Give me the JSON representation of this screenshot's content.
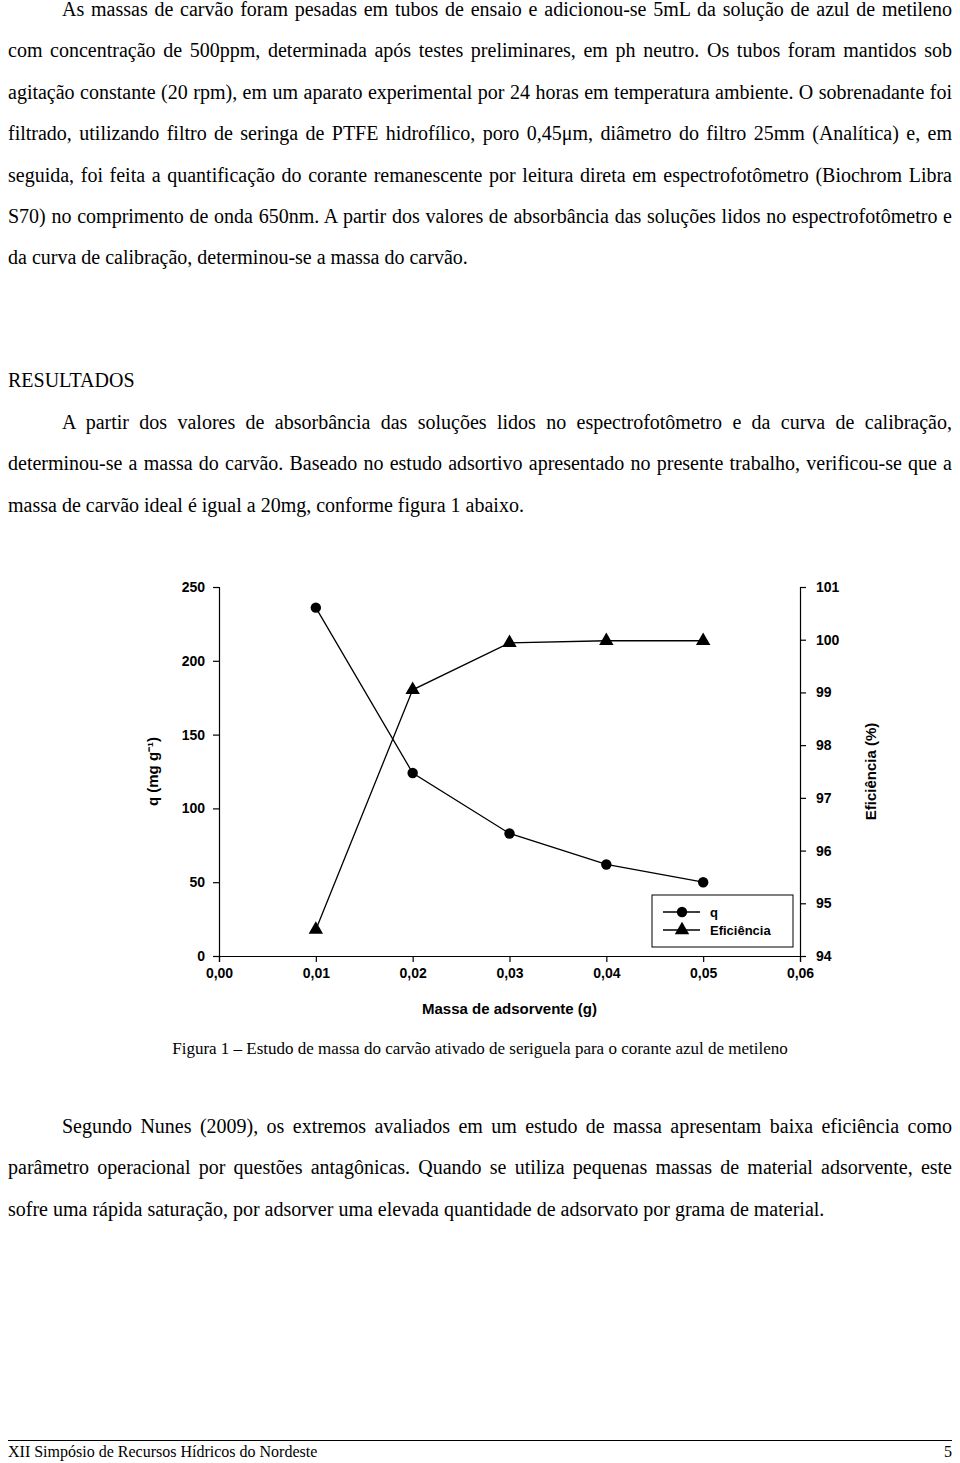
{
  "paragraphs": [
    "As massas de carvão foram  pesadas em tubos de ensaio e adicionou-se 5mL da solução de azul de metileno com concentração de 500ppm, determinada após testes preliminares, em ph neutro. Os tubos foram  mantidos sob agitação constante (20 rpm), em um aparato experimental por 24 horas em temperatura ambiente. O sobrenadante foi filtrado, utilizando filtro de seringa de PTFE hidrofílico, poro 0,45μm, diâmetro do filtro 25mm (Analítica) e, em seguida, foi feita a quantificação do corante remanescente por leitura direta em espectrofotômetro (Biochrom Libra S70) no comprimento de onda 650nm. A partir dos valores de absorbância das soluções lidos no espectrofotômetro e da curva de calibração, determinou-se a massa do carvão.",
    "A partir dos valores de absorbância das soluções lidos no espectrofotômetro e da curva de calibração, determinou-se a massa do carvão. Baseado no estudo adsortivo apresentado no presente trabalho, verificou-se que a massa de carvão ideal é igual a 20mg, conforme figura 1 abaixo.",
    "Segundo Nunes (2009), os extremos avaliados em um estudo de massa apresentam baixa eficiência como parâmetro operacional por questões antagônicas. Quando se utiliza pequenas massas de material adsorvente, este sofre uma rápida saturação, por adsorver uma elevada quantidade de adsorvato por grama de material."
  ],
  "heading": "RESULTADOS",
  "caption": "Figura 1 – Estudo de massa do carvão ativado de seriguela para o corante azul de metileno",
  "footer": {
    "left": "XII Simpósio de Recursos Hídricos do Nordeste",
    "page": "5"
  },
  "chart_data": {
    "type": "line",
    "x_label": "Massa de adsorvente (g)",
    "y_label": "q (mg g⁻¹)",
    "y2_label": "Eficiência (%)",
    "x": [
      0.01,
      0.02,
      0.03,
      0.04,
      0.05
    ],
    "series": [
      {
        "name": "q",
        "color": "#000000",
        "marker": "circle",
        "line_style": "solid",
        "values": [
          236,
          124,
          83,
          62,
          50
        ]
      },
      {
        "name": "Eficiência",
        "color": "#000000",
        "marker": "triangle",
        "line_style": "solid",
        "axis": "y2",
        "values": [
          94.5,
          99.05,
          99.94,
          99.98,
          99.98
        ]
      }
    ],
    "xlim": [
      0,
      0.06
    ],
    "xticks": [
      {
        "value": 0,
        "label": "0,00"
      },
      {
        "value": 0.01,
        "label": "0,01"
      },
      {
        "value": 0.02,
        "label": "0,02"
      },
      {
        "value": 0.03,
        "label": "0,03"
      },
      {
        "value": 0.04,
        "label": "0,04"
      },
      {
        "value": 0.05,
        "label": "0,05"
      },
      {
        "value": 0.06,
        "label": "0,06"
      }
    ],
    "ylim": [
      0,
      250
    ],
    "yticks": [
      0,
      50,
      100,
      150,
      200,
      250
    ],
    "y2lim": [
      94,
      101
    ],
    "y2ticks": [
      94,
      95,
      96,
      97,
      98,
      99,
      100,
      101
    ],
    "legend": "lower right",
    "grid": false
  }
}
